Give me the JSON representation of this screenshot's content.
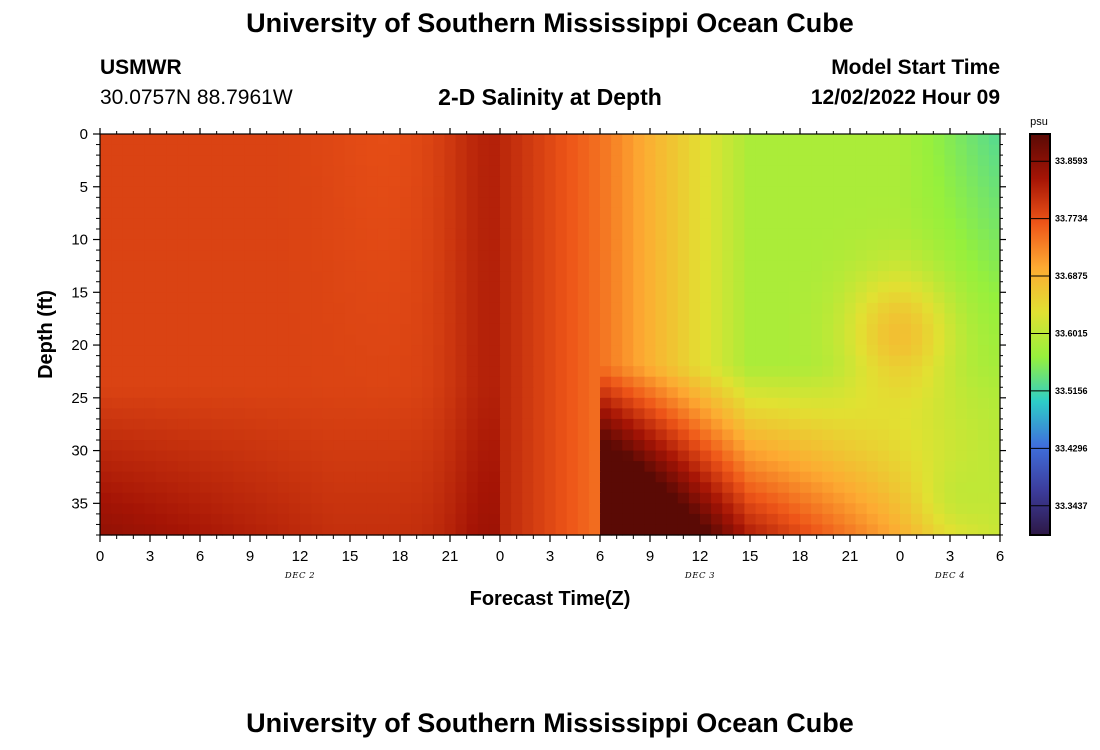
{
  "header": {
    "title": "University of Southern Mississippi Ocean Cube",
    "station": "USMWR",
    "coords": "30.0757N  88.7961W",
    "chart_title": "2-D Salinity at Depth",
    "model_label": "Model Start Time",
    "model_time": "12/02/2022 Hour 09"
  },
  "footer": {
    "title": "University of Southern Mississippi Ocean Cube"
  },
  "colors": {
    "colormap": [
      "#2d1846",
      "#3c3c9c",
      "#3f6fdc",
      "#2dcdc8",
      "#96f03c",
      "#e1e132",
      "#fdaa32",
      "#ee5518",
      "#a51405",
      "#5a0a05"
    ]
  },
  "chart_data": {
    "type": "heatmap",
    "title": "2-D Salinity at Depth",
    "xlabel": "Forecast Time(Z)",
    "ylabel": "Depth (ft)",
    "x_range_hours": [
      0,
      54
    ],
    "y_range_ft": [
      0,
      38
    ],
    "xticks": [
      "0",
      "3",
      "6",
      "9",
      "12",
      "15",
      "18",
      "21",
      "0",
      "3",
      "6",
      "9",
      "12",
      "15",
      "18",
      "21",
      "0",
      "3",
      "6"
    ],
    "yticks": [
      "0",
      "5",
      "10",
      "15",
      "20",
      "25",
      "30",
      "35"
    ],
    "date_labels": [
      {
        "label": "DEC 2",
        "hour": 12
      },
      {
        "label": "DEC 3",
        "hour": 36
      },
      {
        "label": "DEC 4",
        "hour": 51
      }
    ],
    "colorbar": {
      "unit": "psu",
      "min": 33.3,
      "max": 33.9,
      "ticks": [
        "33.8593",
        "33.7734",
        "33.6875",
        "33.6015",
        "33.5156",
        "33.4296",
        "33.3437"
      ]
    },
    "grid_columns": 81,
    "grid_rows": 38,
    "value_field": "Salinity (psu) estimated from image colors"
  }
}
